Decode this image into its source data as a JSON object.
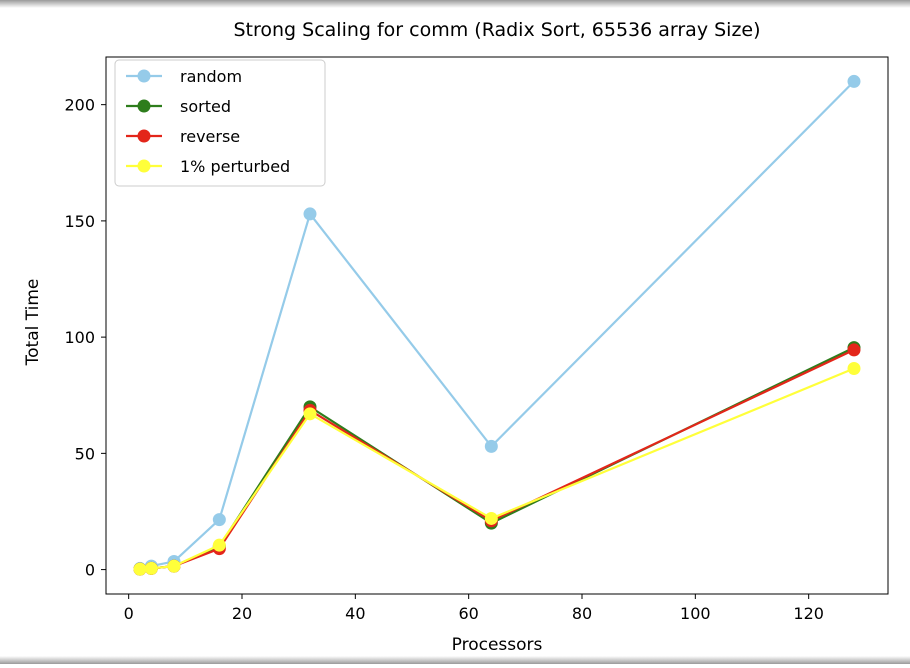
{
  "chart_data": {
    "type": "line",
    "title": "Strong Scaling for comm (Radix Sort, 65536 array Size)",
    "xlabel": "Processors",
    "ylabel": "Total Time",
    "xlim": [
      -4,
      134
    ],
    "ylim": [
      -10.5,
      220.5
    ],
    "xticks": [
      0,
      20,
      40,
      60,
      80,
      100,
      120
    ],
    "yticks": [
      0,
      50,
      100,
      150,
      200
    ],
    "grid": false,
    "legend_position": "upper-left",
    "x": [
      2,
      4,
      8,
      16,
      32,
      64,
      128
    ],
    "series": [
      {
        "name": "random",
        "color": "#95cbe9",
        "values": [
          0.5,
          1.5,
          3.5,
          21.5,
          153,
          53,
          210
        ]
      },
      {
        "name": "sorted",
        "color": "#2e7d1c",
        "values": [
          0.2,
          0.5,
          1.5,
          10,
          70,
          20,
          95.5
        ]
      },
      {
        "name": "reverse",
        "color": "#e3261a",
        "values": [
          0.2,
          0.5,
          1.5,
          9,
          68.5,
          21,
          94.5
        ]
      },
      {
        "name": "1% perturbed",
        "color": "#ffff3a",
        "values": [
          0.2,
          0.5,
          1.5,
          10.5,
          67,
          22,
          86.5
        ]
      }
    ]
  }
}
